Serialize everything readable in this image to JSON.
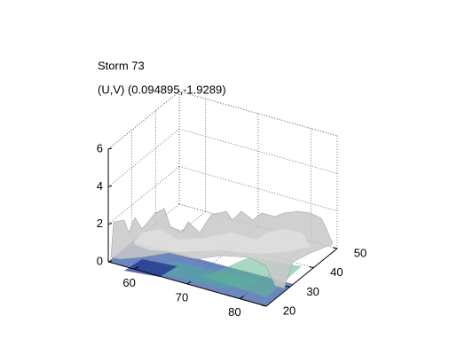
{
  "chart_data": {
    "type": "surface3d",
    "title": "Storm 73",
    "subtitle": "(U,V) (0.094895,-1.9289)",
    "xlim": [
      55,
      85
    ],
    "xticks": [
      60,
      70,
      80
    ],
    "ylim": [
      20,
      50
    ],
    "yticks": [
      20,
      30,
      40,
      50
    ],
    "zlim": [
      0,
      6
    ],
    "zticks": [
      0,
      2,
      4,
      6
    ],
    "grid": true
  }
}
